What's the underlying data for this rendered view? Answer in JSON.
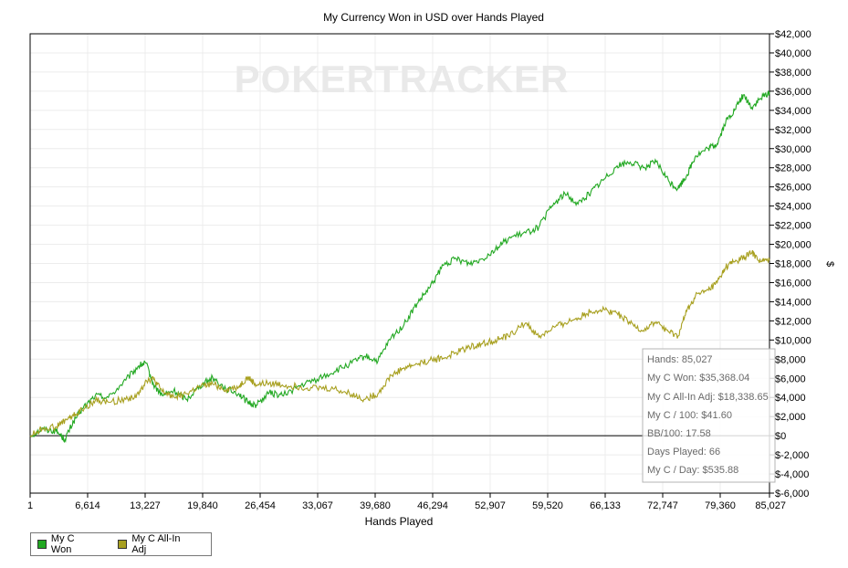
{
  "chart_data": {
    "type": "line",
    "title": "My Currency Won in USD over Hands Played",
    "xlabel": "Hands Played",
    "ylabel": "$",
    "xlim": [
      1,
      85027
    ],
    "ylim": [
      -6000,
      42000
    ],
    "x_ticks": [
      "1",
      "6,614",
      "13,227",
      "19,840",
      "26,454",
      "33,067",
      "39,680",
      "46,294",
      "52,907",
      "59,520",
      "66,133",
      "72,747",
      "79,360",
      "85,027"
    ],
    "x_tick_values": [
      1,
      6614,
      13227,
      19840,
      26454,
      33067,
      39680,
      46294,
      52907,
      59520,
      66133,
      72747,
      79360,
      85027
    ],
    "y_ticks": [
      "$42,000",
      "$40,000",
      "$38,000",
      "$36,000",
      "$34,000",
      "$32,000",
      "$30,000",
      "$28,000",
      "$26,000",
      "$24,000",
      "$22,000",
      "$20,000",
      "$18,000",
      "$16,000",
      "$14,000",
      "$12,000",
      "$10,000",
      "$8,000",
      "$6,000",
      "$4,000",
      "$2,000",
      "$0",
      "$-2,000",
      "$-4,000",
      "$-6,000"
    ],
    "y_tick_values": [
      42000,
      40000,
      38000,
      36000,
      34000,
      32000,
      30000,
      28000,
      26000,
      24000,
      22000,
      20000,
      18000,
      16000,
      14000,
      12000,
      10000,
      8000,
      6000,
      4000,
      2000,
      0,
      -2000,
      -4000,
      -6000
    ],
    "grid": true,
    "legend_position": "bottom-left",
    "watermark": "POKERTRACKER",
    "series": [
      {
        "name": "My C Won",
        "color": "#22a822",
        "x": [
          1,
          1500,
          3000,
          4000,
          5000,
          6000,
          7500,
          9000,
          11000,
          12500,
          13300,
          14200,
          15200,
          16500,
          18000,
          19500,
          21000,
          22500,
          24000,
          25000,
          26000,
          27500,
          29000,
          31000,
          33000,
          35000,
          37000,
          38500,
          40000,
          41500,
          43000,
          44500,
          46000,
          47500,
          49000,
          50500,
          52000,
          53500,
          55000,
          57000,
          58500,
          60000,
          61500,
          63000,
          64500,
          66000,
          67500,
          69000,
          70500,
          72000,
          73500,
          74500,
          75500,
          76500,
          78000,
          79000,
          80000,
          81000,
          82000,
          83000,
          84000,
          85027
        ],
        "y": [
          0,
          700,
          500,
          -400,
          1500,
          2800,
          4200,
          4000,
          5800,
          7300,
          7600,
          5300,
          4200,
          4700,
          3800,
          5200,
          6100,
          4900,
          4400,
          3500,
          3200,
          4500,
          4200,
          5200,
          5900,
          6700,
          7600,
          8300,
          7800,
          10200,
          11600,
          13800,
          15500,
          17800,
          18500,
          18000,
          18500,
          19500,
          20600,
          21200,
          21800,
          24000,
          25300,
          24200,
          25500,
          26800,
          28200,
          28600,
          28000,
          28600,
          26500,
          25800,
          27200,
          29200,
          30000,
          30500,
          32800,
          34000,
          35600,
          34300,
          35200,
          35900
        ]
      },
      {
        "name": "My C All-In Adj",
        "color": "#a8a020",
        "x": [
          1,
          1500,
          3000,
          4000,
          5000,
          6000,
          7500,
          9000,
          11000,
          12500,
          13300,
          14200,
          15200,
          16500,
          18000,
          19500,
          21000,
          22500,
          24000,
          25000,
          26000,
          27500,
          29000,
          31000,
          33000,
          35000,
          37000,
          38500,
          40000,
          41500,
          43000,
          44500,
          46000,
          47500,
          49000,
          50500,
          52000,
          53500,
          55000,
          57000,
          58500,
          60000,
          61500,
          63000,
          64500,
          66000,
          67500,
          69000,
          70500,
          72000,
          73500,
          74500,
          75500,
          76500,
          78000,
          79000,
          80000,
          81000,
          82000,
          83000,
          84000,
          85027
        ],
        "y": [
          0,
          800,
          900,
          1600,
          2100,
          2700,
          3700,
          3500,
          3800,
          4300,
          5800,
          5900,
          4600,
          4100,
          4400,
          5100,
          5400,
          4800,
          5100,
          6100,
          5300,
          5500,
          5300,
          5100,
          5000,
          4900,
          4300,
          3800,
          4400,
          6300,
          7100,
          7500,
          7900,
          8100,
          8700,
          9300,
          9600,
          10000,
          10400,
          11800,
          10300,
          11200,
          11800,
          12300,
          13000,
          13200,
          12800,
          11700,
          11000,
          11900,
          10800,
          10400,
          13000,
          14600,
          15200,
          16000,
          17600,
          18200,
          18600,
          19100,
          18200,
          18300
        ]
      }
    ]
  },
  "stats": {
    "hands": "Hands: 85,027",
    "won": "My C Won: $35,368.04",
    "allin": "My C All-In Adj: $18,338.65",
    "per100": "My C / 100: $41.60",
    "bb100": "BB/100: 17.58",
    "days": "Days Played: 66",
    "perday": "My C / Day: $535.88"
  },
  "legend": {
    "items": [
      {
        "label": "My C Won",
        "color": "#22a822"
      },
      {
        "label": "My C All-In Adj",
        "color": "#a8a020"
      }
    ]
  }
}
